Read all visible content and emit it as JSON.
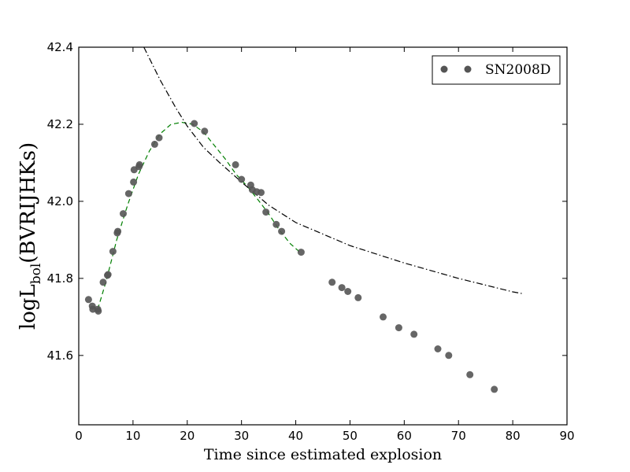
{
  "chart_data": {
    "type": "scatter",
    "xlabel": "Time since estimated explosion",
    "ylabel": "logL_bol(BVRIJHKs)",
    "ylabel_parts": {
      "prefix": "logL",
      "subscript": "bol",
      "suffix": "(BVRIJHKs)"
    },
    "xlim": [
      0,
      90
    ],
    "ylim": [
      41.42,
      42.4
    ],
    "xticks": [
      0,
      10,
      20,
      30,
      40,
      50,
      60,
      70,
      80,
      90
    ],
    "yticks": [
      41.6,
      41.8,
      42.0,
      42.2,
      42.4
    ],
    "xtick_labels": [
      "0",
      "10",
      "20",
      "30",
      "40",
      "50",
      "60",
      "70",
      "80",
      "90"
    ],
    "ytick_labels": [
      "41.6",
      "41.8",
      "42.0",
      "42.2",
      "42.4"
    ],
    "grid": false,
    "legend_position": "top-right",
    "series": [
      {
        "name": "SN2008D",
        "color": "#555555",
        "marker": "circle",
        "points": [
          [
            1.8,
            41.745
          ],
          [
            2.5,
            41.728
          ],
          [
            2.6,
            41.72
          ],
          [
            3.5,
            41.72
          ],
          [
            3.6,
            41.715
          ],
          [
            4.5,
            41.79
          ],
          [
            5.3,
            41.808
          ],
          [
            5.4,
            41.81
          ],
          [
            6.3,
            41.87
          ],
          [
            7.1,
            41.918
          ],
          [
            7.2,
            41.922
          ],
          [
            8.2,
            41.968
          ],
          [
            9.2,
            42.02
          ],
          [
            10.1,
            42.05
          ],
          [
            10.2,
            42.082
          ],
          [
            11.1,
            42.09
          ],
          [
            11.2,
            42.095
          ],
          [
            14.0,
            42.148
          ],
          [
            14.8,
            42.165
          ],
          [
            21.3,
            42.202
          ],
          [
            23.2,
            42.182
          ],
          [
            28.9,
            42.095
          ],
          [
            30.0,
            42.057
          ],
          [
            31.7,
            42.042
          ],
          [
            32.0,
            42.03
          ],
          [
            32.8,
            42.025
          ],
          [
            33.6,
            42.023
          ],
          [
            34.5,
            41.972
          ],
          [
            36.4,
            41.94
          ],
          [
            37.4,
            41.922
          ],
          [
            41.0,
            41.868
          ],
          [
            46.7,
            41.79
          ],
          [
            48.5,
            41.776
          ],
          [
            49.6,
            41.766
          ],
          [
            51.5,
            41.75
          ],
          [
            56.1,
            41.7
          ],
          [
            59.0,
            41.672
          ],
          [
            61.8,
            41.655
          ],
          [
            66.2,
            41.617
          ],
          [
            68.2,
            41.6
          ],
          [
            72.1,
            41.55
          ],
          [
            76.6,
            41.512
          ]
        ]
      }
    ],
    "fits": [
      {
        "style": "dashed",
        "color": "#007f00",
        "x": [
          3.5,
          5,
          7,
          9,
          11,
          13,
          15,
          17,
          19,
          21,
          23,
          25,
          27,
          29,
          31,
          33,
          35,
          37,
          39,
          41
        ],
        "y": [
          41.72,
          41.79,
          41.9,
          41.99,
          42.07,
          42.13,
          42.175,
          42.2,
          42.205,
          42.2,
          42.18,
          42.145,
          42.11,
          42.07,
          42.04,
          42.005,
          41.968,
          41.925,
          41.89,
          41.865
        ]
      },
      {
        "style": "dashdot",
        "color": "#000000",
        "x": [
          12,
          15,
          18,
          20,
          23,
          26,
          30,
          35,
          40,
          50,
          60,
          70,
          80,
          82
        ],
        "y": [
          42.4,
          42.315,
          42.24,
          42.195,
          42.14,
          42.1,
          42.05,
          41.99,
          41.945,
          41.885,
          41.84,
          41.8,
          41.765,
          41.76
        ]
      }
    ]
  }
}
